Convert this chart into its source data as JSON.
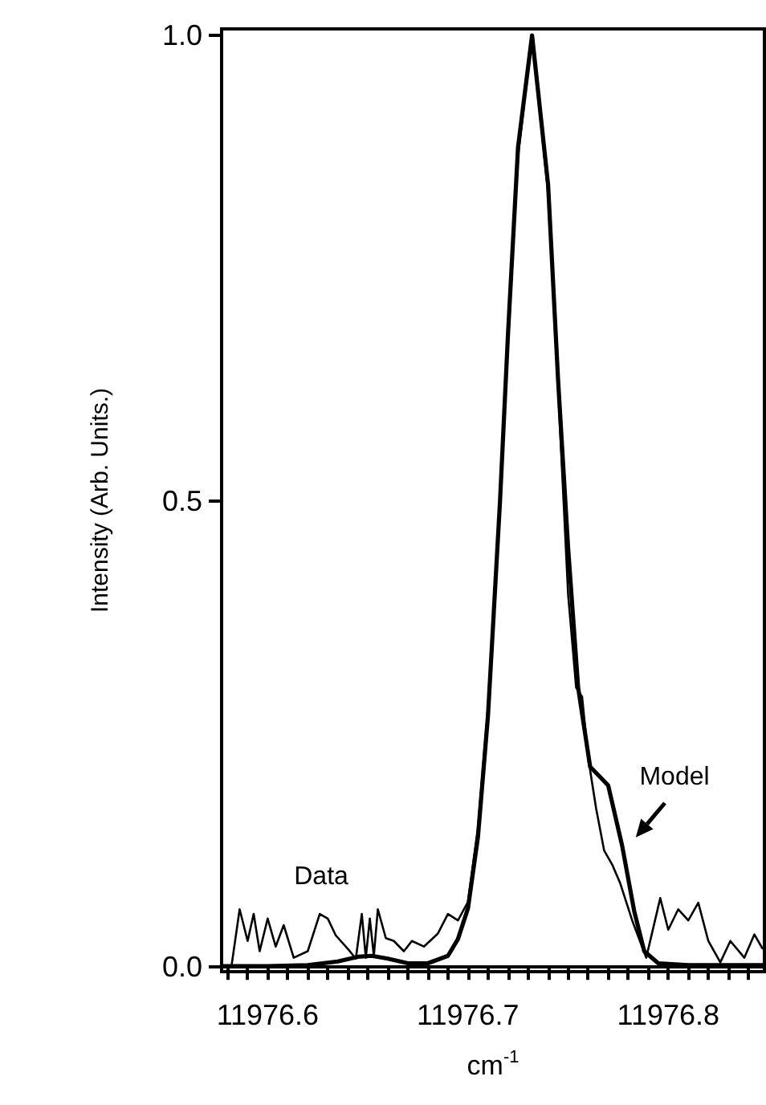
{
  "chart_data": {
    "type": "line",
    "xlabel": "cm$^{-1}$",
    "ylabel": "Intensity (Arb. Units.)",
    "xlim": [
      11976.577,
      11976.848
    ],
    "ylim": [
      -0.005,
      1.007
    ],
    "xticks": [
      {
        "value": 11976.58,
        "label": null
      },
      {
        "value": 11976.59,
        "label": null
      },
      {
        "value": 11976.6,
        "label": "11976.6"
      },
      {
        "value": 11976.61,
        "label": null
      },
      {
        "value": 11976.62,
        "label": null
      },
      {
        "value": 11976.63,
        "label": null
      },
      {
        "value": 11976.64,
        "label": null
      },
      {
        "value": 11976.65,
        "label": null
      },
      {
        "value": 11976.66,
        "label": null
      },
      {
        "value": 11976.67,
        "label": null
      },
      {
        "value": 11976.68,
        "label": null
      },
      {
        "value": 11976.69,
        "label": null
      },
      {
        "value": 11976.7,
        "label": "11976.7"
      },
      {
        "value": 11976.71,
        "label": null
      },
      {
        "value": 11976.72,
        "label": null
      },
      {
        "value": 11976.73,
        "label": null
      },
      {
        "value": 11976.74,
        "label": null
      },
      {
        "value": 11976.75,
        "label": null
      },
      {
        "value": 11976.76,
        "label": null
      },
      {
        "value": 11976.77,
        "label": null
      },
      {
        "value": 11976.78,
        "label": null
      },
      {
        "value": 11976.79,
        "label": null
      },
      {
        "value": 11976.8,
        "label": "11976.8"
      },
      {
        "value": 11976.81,
        "label": null
      },
      {
        "value": 11976.82,
        "label": null
      },
      {
        "value": 11976.83,
        "label": null
      },
      {
        "value": 11976.84,
        "label": null
      }
    ],
    "yticks": [
      {
        "value": 0,
        "label": "0.0"
      },
      {
        "value": 0.5,
        "label": "0.5"
      },
      {
        "value": 1,
        "label": "1.0"
      }
    ],
    "marker": "none",
    "series": [
      {
        "name": "Data",
        "color": "#000000",
        "x": [
          11976.582,
          11976.586,
          11976.59,
          11976.593,
          11976.596,
          11976.6,
          11976.604,
          11976.608,
          11976.613,
          11976.62,
          11976.626,
          11976.63,
          11976.634,
          11976.641,
          11976.644,
          11976.647,
          11976.649,
          11976.651,
          11976.653,
          11976.655,
          11976.659,
          11976.663,
          11976.668,
          11976.672,
          11976.678,
          11976.685,
          11976.69,
          11976.695,
          11976.7,
          11976.705,
          11976.71,
          11976.716,
          11976.72,
          11976.725,
          11976.732,
          11976.74,
          11976.745,
          11976.75,
          11976.754,
          11976.757,
          11976.76,
          11976.764,
          11976.768,
          11976.772,
          11976.776,
          11976.782,
          11976.789,
          11976.796,
          11976.8,
          11976.805,
          11976.81,
          11976.815,
          11976.82,
          11976.826,
          11976.831,
          11976.838,
          11976.843,
          11976.847
        ],
        "values": [
          0.002,
          0.062,
          0.028,
          0.057,
          0.017,
          0.052,
          0.022,
          0.045,
          0.01,
          0.017,
          0.057,
          0.052,
          0.034,
          0.017,
          0.009,
          0.057,
          0.01,
          0.052,
          0.012,
          0.062,
          0.031,
          0.028,
          0.017,
          0.028,
          0.022,
          0.036,
          0.057,
          0.05,
          0.07,
          0.15,
          0.28,
          0.5,
          0.67,
          0.87,
          1.0,
          0.83,
          0.62,
          0.4,
          0.3,
          0.29,
          0.225,
          0.17,
          0.125,
          0.11,
          0.09,
          0.05,
          0.01,
          0.074,
          0.04,
          0.062,
          0.05,
          0.069,
          0.028,
          0.005,
          0.028,
          0.01,
          0.035,
          0.02
        ]
      },
      {
        "name": "Model",
        "color": "#000000",
        "x": [
          11976.577,
          11976.6,
          11976.62,
          11976.635,
          11976.645,
          11976.652,
          11976.66,
          11976.67,
          11976.68,
          11976.69,
          11976.695,
          11976.7,
          11976.705,
          11976.71,
          11976.716,
          11976.72,
          11976.725,
          11976.732,
          11976.74,
          11976.745,
          11976.75,
          11976.755,
          11976.761,
          11976.77,
          11976.777,
          11976.783,
          11976.788,
          11976.795,
          11976.81,
          11976.848
        ],
        "values": [
          0.001,
          0.001,
          0.002,
          0.006,
          0.011,
          0.012,
          0.009,
          0.004,
          0.004,
          0.012,
          0.03,
          0.063,
          0.14,
          0.27,
          0.5,
          0.68,
          0.88,
          1.0,
          0.84,
          0.63,
          0.45,
          0.3,
          0.215,
          0.195,
          0.13,
          0.06,
          0.017,
          0.004,
          0.002,
          0.002
        ]
      }
    ]
  }
}
